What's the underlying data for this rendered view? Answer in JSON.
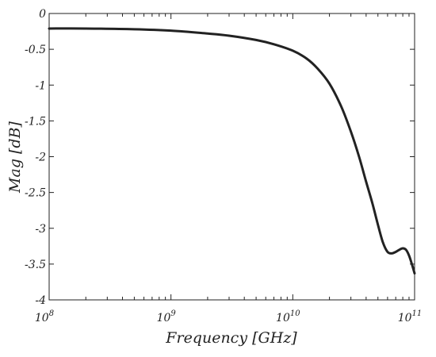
{
  "chart_data": {
    "type": "line",
    "title": "",
    "xlabel": "Frequency [GHz]",
    "ylabel": "Mag [dB]",
    "xscale": "log",
    "xlim": [
      100000000,
      100000000000
    ],
    "ylim": [
      -4,
      0
    ],
    "x_ticks": [
      {
        "base": "10",
        "exp": "8",
        "value": 100000000
      },
      {
        "base": "10",
        "exp": "9",
        "value": 1000000000
      },
      {
        "base": "10",
        "exp": "10",
        "value": 10000000000
      },
      {
        "base": "10",
        "exp": "11",
        "value": 100000000000
      }
    ],
    "y_ticks": [
      {
        "label": "0",
        "value": 0
      },
      {
        "label": "-0.5",
        "value": -0.5
      },
      {
        "label": "-1",
        "value": -1
      },
      {
        "label": "-1.5",
        "value": -1.5
      },
      {
        "label": "-2",
        "value": -2
      },
      {
        "label": "-2.5",
        "value": -2.5
      },
      {
        "label": "-3",
        "value": -3
      },
      {
        "label": "-3.5",
        "value": -3.5
      },
      {
        "label": "-4",
        "value": -4
      }
    ],
    "grid": false,
    "line_color": "#222222",
    "series": [
      {
        "x": [
          100000000,
          200000000,
          500000000,
          1000000000,
          2000000000,
          3000000000,
          5000000000,
          7000000000,
          10000000000,
          13000000000,
          16000000000,
          20000000000,
          25000000000,
          30000000000,
          35000000000,
          40000000000,
          45000000000,
          50000000000,
          55000000000,
          60000000000,
          65000000000,
          70000000000,
          75000000000,
          80000000000,
          85000000000,
          90000000000,
          95000000000,
          100000000000
        ],
        "y": [
          -0.21,
          -0.21,
          -0.22,
          -0.24,
          -0.28,
          -0.31,
          -0.37,
          -0.43,
          -0.52,
          -0.63,
          -0.77,
          -0.98,
          -1.3,
          -1.65,
          -2.0,
          -2.35,
          -2.65,
          -2.95,
          -3.2,
          -3.33,
          -3.35,
          -3.33,
          -3.3,
          -3.28,
          -3.3,
          -3.38,
          -3.5,
          -3.63
        ]
      }
    ]
  }
}
